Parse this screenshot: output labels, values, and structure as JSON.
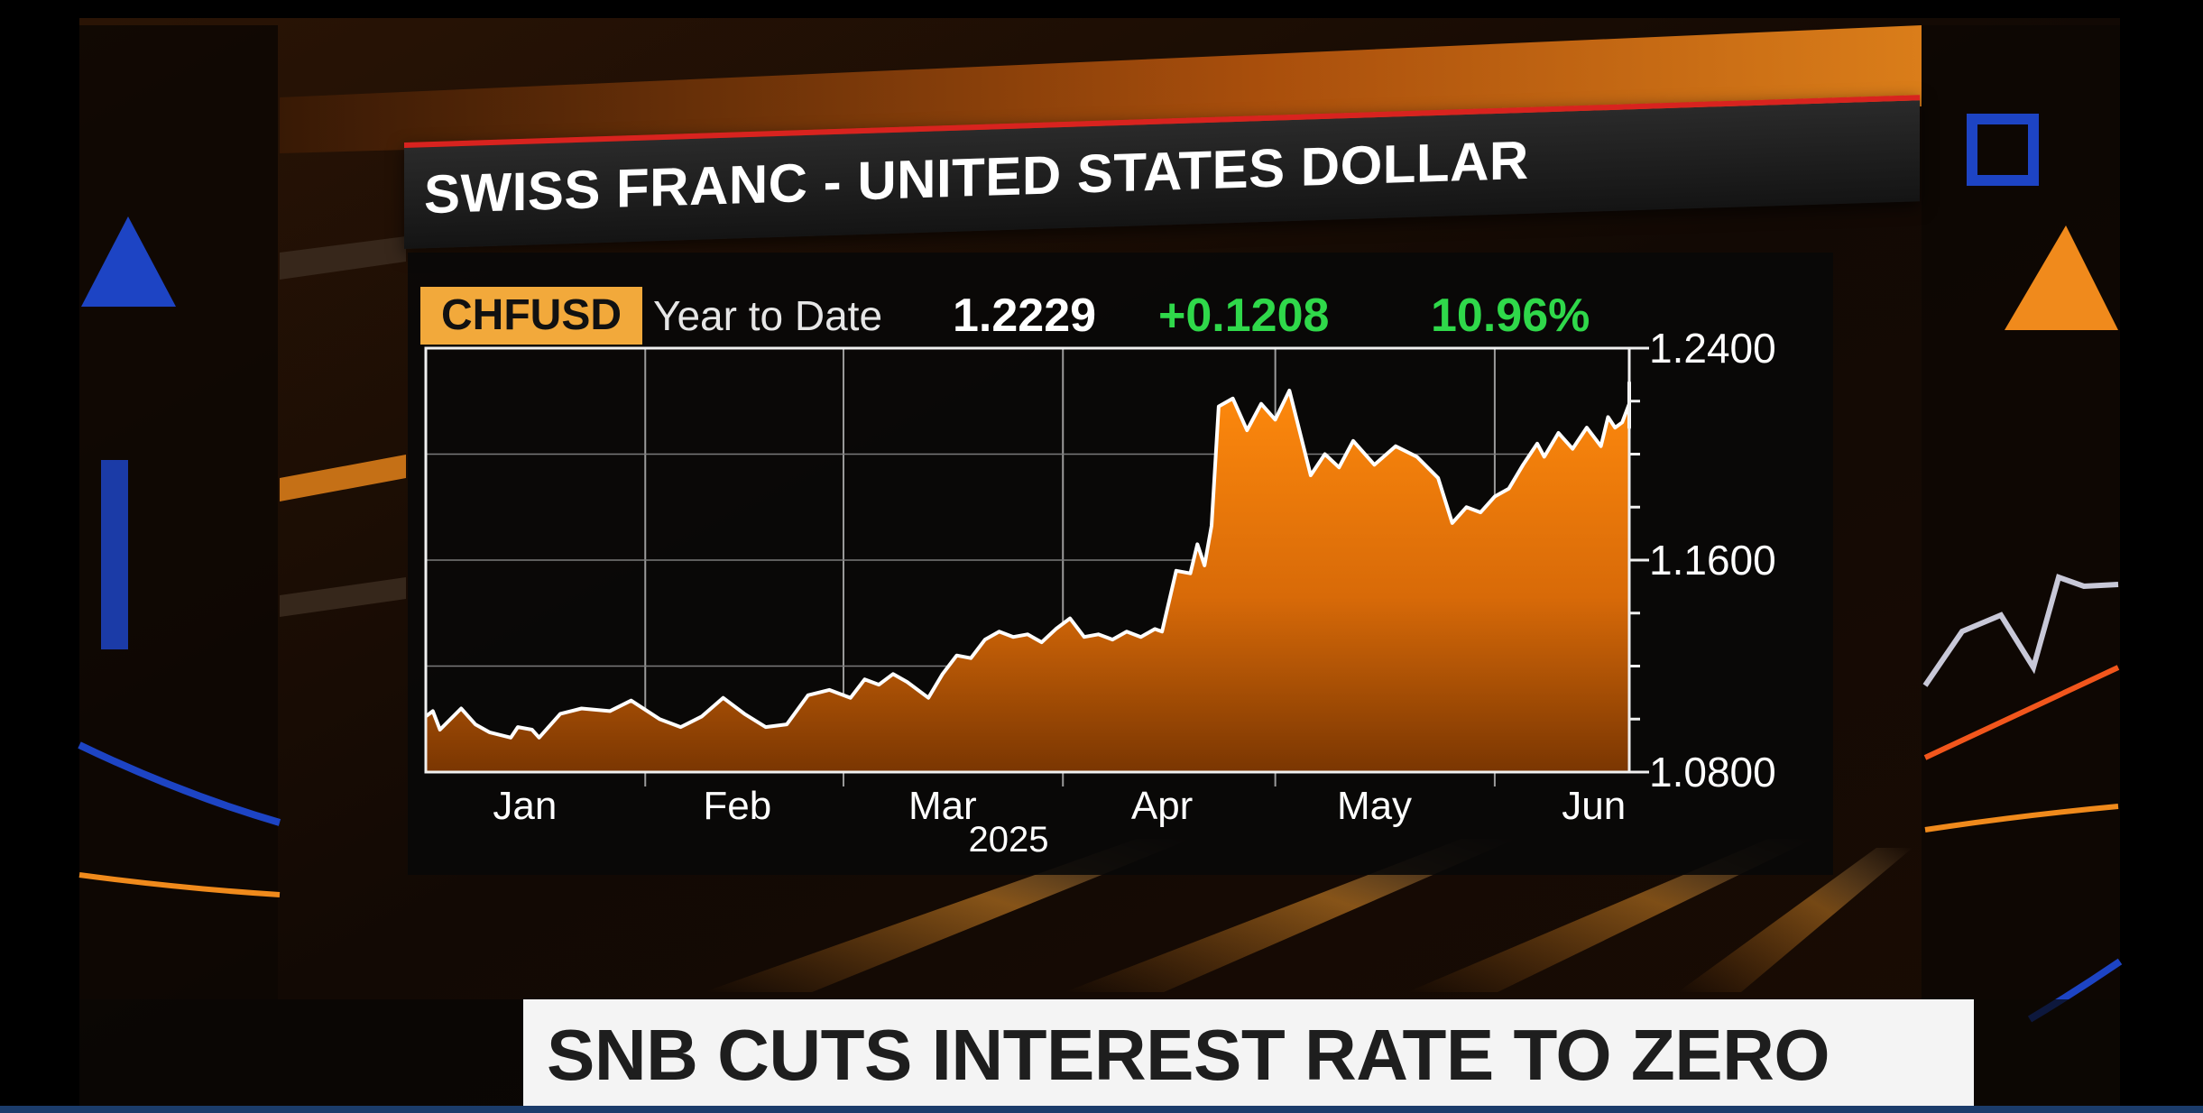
{
  "screen": {
    "title": "SWISS FRANC - UNITED STATES DOLLAR",
    "ticker": "CHFUSD",
    "period": "Year to Date",
    "price": "1.2229",
    "change": "+0.1208",
    "change_pct": "10.96%",
    "headline": "SNB CUTS INTEREST RATE TO ZERO"
  },
  "colors": {
    "accent_orange": "#f08a1c",
    "ticker_badge": "#f2a93b",
    "positive_green": "#2fd84a",
    "title_bar_red": "#d8231f",
    "line_white": "#ffffff"
  },
  "chart_data": {
    "type": "area",
    "title": "SWISS FRANC - UNITED STATES DOLLAR",
    "xlabel": "2025",
    "ylabel": "",
    "x_domain": [
      "2025-01-01",
      "2025-06-20"
    ],
    "ylim": [
      1.08,
      1.24
    ],
    "y_ticks": [
      {
        "value": 1.24,
        "label": "1.2400"
      },
      {
        "value": 1.16,
        "label": "1.1600"
      },
      {
        "value": 1.08,
        "label": "1.0800"
      }
    ],
    "x_ticks": [
      {
        "date": "2025-01-15",
        "label": "Jan"
      },
      {
        "date": "2025-02-14",
        "label": "Feb"
      },
      {
        "date": "2025-03-15",
        "label": "Mar"
      },
      {
        "date": "2025-04-15",
        "label": "Apr"
      },
      {
        "date": "2025-05-15",
        "label": "May"
      },
      {
        "date": "2025-06-15",
        "label": "Jun"
      }
    ],
    "x_separators": [
      "2025-02-01",
      "2025-03-01",
      "2025-04-01",
      "2025-05-01",
      "2025-06-01"
    ],
    "grid": true,
    "legend": "none",
    "series": [
      {
        "points": [
          {
            "x": "2025-01-01",
            "y": 1.101
          },
          {
            "x": "2025-01-02",
            "y": 1.103
          },
          {
            "x": "2025-01-03",
            "y": 1.096
          },
          {
            "x": "2025-01-06",
            "y": 1.104
          },
          {
            "x": "2025-01-08",
            "y": 1.098
          },
          {
            "x": "2025-01-10",
            "y": 1.095
          },
          {
            "x": "2025-01-13",
            "y": 1.093
          },
          {
            "x": "2025-01-14",
            "y": 1.097
          },
          {
            "x": "2025-01-16",
            "y": 1.096
          },
          {
            "x": "2025-01-17",
            "y": 1.093
          },
          {
            "x": "2025-01-20",
            "y": 1.102
          },
          {
            "x": "2025-01-23",
            "y": 1.104
          },
          {
            "x": "2025-01-27",
            "y": 1.103
          },
          {
            "x": "2025-01-30",
            "y": 1.107
          },
          {
            "x": "2025-02-03",
            "y": 1.1
          },
          {
            "x": "2025-02-06",
            "y": 1.097
          },
          {
            "x": "2025-02-09",
            "y": 1.101
          },
          {
            "x": "2025-02-12",
            "y": 1.108
          },
          {
            "x": "2025-02-15",
            "y": 1.102
          },
          {
            "x": "2025-02-18",
            "y": 1.097
          },
          {
            "x": "2025-02-21",
            "y": 1.098
          },
          {
            "x": "2025-02-24",
            "y": 1.109
          },
          {
            "x": "2025-02-27",
            "y": 1.111
          },
          {
            "x": "2025-03-02",
            "y": 1.108
          },
          {
            "x": "2025-03-04",
            "y": 1.115
          },
          {
            "x": "2025-03-06",
            "y": 1.113
          },
          {
            "x": "2025-03-08",
            "y": 1.117
          },
          {
            "x": "2025-03-10",
            "y": 1.114
          },
          {
            "x": "2025-03-13",
            "y": 1.108
          },
          {
            "x": "2025-03-15",
            "y": 1.117
          },
          {
            "x": "2025-03-17",
            "y": 1.124
          },
          {
            "x": "2025-03-19",
            "y": 1.123
          },
          {
            "x": "2025-03-21",
            "y": 1.13
          },
          {
            "x": "2025-03-23",
            "y": 1.133
          },
          {
            "x": "2025-03-25",
            "y": 1.131
          },
          {
            "x": "2025-03-27",
            "y": 1.132
          },
          {
            "x": "2025-03-29",
            "y": 1.129
          },
          {
            "x": "2025-03-31",
            "y": 1.134
          },
          {
            "x": "2025-04-02",
            "y": 1.138
          },
          {
            "x": "2025-04-04",
            "y": 1.131
          },
          {
            "x": "2025-04-06",
            "y": 1.132
          },
          {
            "x": "2025-04-08",
            "y": 1.13
          },
          {
            "x": "2025-04-10",
            "y": 1.133
          },
          {
            "x": "2025-04-12",
            "y": 1.131
          },
          {
            "x": "2025-04-14",
            "y": 1.134
          },
          {
            "x": "2025-04-15",
            "y": 1.133
          },
          {
            "x": "2025-04-17",
            "y": 1.156
          },
          {
            "x": "2025-04-19",
            "y": 1.155
          },
          {
            "x": "2025-04-20",
            "y": 1.166
          },
          {
            "x": "2025-04-21",
            "y": 1.158
          },
          {
            "x": "2025-04-22",
            "y": 1.173
          },
          {
            "x": "2025-04-23",
            "y": 1.218
          },
          {
            "x": "2025-04-25",
            "y": 1.221
          },
          {
            "x": "2025-04-27",
            "y": 1.209
          },
          {
            "x": "2025-04-29",
            "y": 1.219
          },
          {
            "x": "2025-05-01",
            "y": 1.213
          },
          {
            "x": "2025-05-03",
            "y": 1.224
          },
          {
            "x": "2025-05-06",
            "y": 1.192
          },
          {
            "x": "2025-05-08",
            "y": 1.2
          },
          {
            "x": "2025-05-10",
            "y": 1.195
          },
          {
            "x": "2025-05-12",
            "y": 1.205
          },
          {
            "x": "2025-05-15",
            "y": 1.196
          },
          {
            "x": "2025-05-18",
            "y": 1.203
          },
          {
            "x": "2025-05-21",
            "y": 1.199
          },
          {
            "x": "2025-05-24",
            "y": 1.191
          },
          {
            "x": "2025-05-26",
            "y": 1.174
          },
          {
            "x": "2025-05-28",
            "y": 1.18
          },
          {
            "x": "2025-05-30",
            "y": 1.178
          },
          {
            "x": "2025-06-01",
            "y": 1.184
          },
          {
            "x": "2025-06-03",
            "y": 1.187
          },
          {
            "x": "2025-06-05",
            "y": 1.196
          },
          {
            "x": "2025-06-07",
            "y": 1.204
          },
          {
            "x": "2025-06-08",
            "y": 1.199
          },
          {
            "x": "2025-06-10",
            "y": 1.208
          },
          {
            "x": "2025-06-12",
            "y": 1.202
          },
          {
            "x": "2025-06-14",
            "y": 1.21
          },
          {
            "x": "2025-06-16",
            "y": 1.203
          },
          {
            "x": "2025-06-17",
            "y": 1.214
          },
          {
            "x": "2025-06-18",
            "y": 1.21
          },
          {
            "x": "2025-06-19",
            "y": 1.212
          },
          {
            "x": "2025-06-20",
            "y": 1.219
          },
          {
            "x": "2025-06-21",
            "y": 1.21
          },
          {
            "x": "2025-06-22",
            "y": 1.227
          },
          {
            "x": "2025-06-24",
            "y": 1.222
          },
          {
            "x": "2025-06-26",
            "y": 1.218
          },
          {
            "x": "2025-06-28",
            "y": 1.2229
          }
        ]
      }
    ]
  }
}
